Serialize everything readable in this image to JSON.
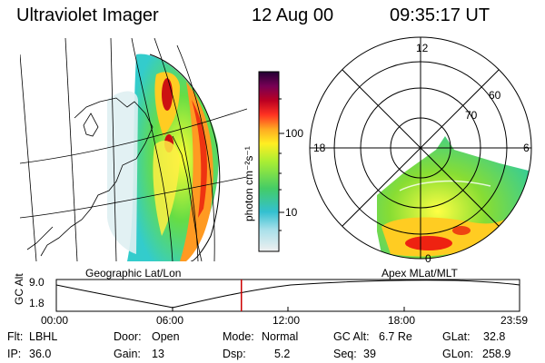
{
  "header": {
    "instrument": "Ultraviolet Imager",
    "date": "12 Aug 00",
    "time": "09:35:17 UT"
  },
  "colorbar": {
    "unit_label": "photon cm⁻²s⁻¹",
    "ticks": [
      "100",
      "10"
    ],
    "scale": "log"
  },
  "left_panel": {
    "caption": "Geographic Lat/Lon"
  },
  "right_panel": {
    "caption": "Apex MLat/MLT",
    "mlt_labels": {
      "top": "12",
      "left": "18",
      "right": "6",
      "bottom": "0"
    },
    "mlat_rings": [
      "60",
      "70"
    ]
  },
  "altitude_plot": {
    "ylabel": "GC Alt",
    "yticks": [
      "9.0",
      "1.8"
    ],
    "xticks": [
      "00:00",
      "06:00",
      "12:00",
      "18:00",
      "23:59"
    ],
    "current_time_marker_hours": 9.588
  },
  "info": {
    "row1": [
      {
        "key": "Flt:",
        "value": "LBHL"
      },
      {
        "key": "Door:",
        "value": "Open"
      },
      {
        "key": "Mode:",
        "value": "Normal"
      },
      {
        "key": "GC Alt:",
        "value": "6.7 Re"
      },
      {
        "key": "GLat:",
        "value": "32.8"
      }
    ],
    "row2": [
      {
        "key": "IP:",
        "value": "36.0"
      },
      {
        "key": "Gain:",
        "value": "13"
      },
      {
        "key": "Dsp:",
        "value": "5.2"
      },
      {
        "key": "Seq:",
        "value": "39"
      },
      {
        "key": "GLon:",
        "value": "258.9"
      }
    ]
  },
  "colors": {
    "marker": "#cc0000"
  }
}
